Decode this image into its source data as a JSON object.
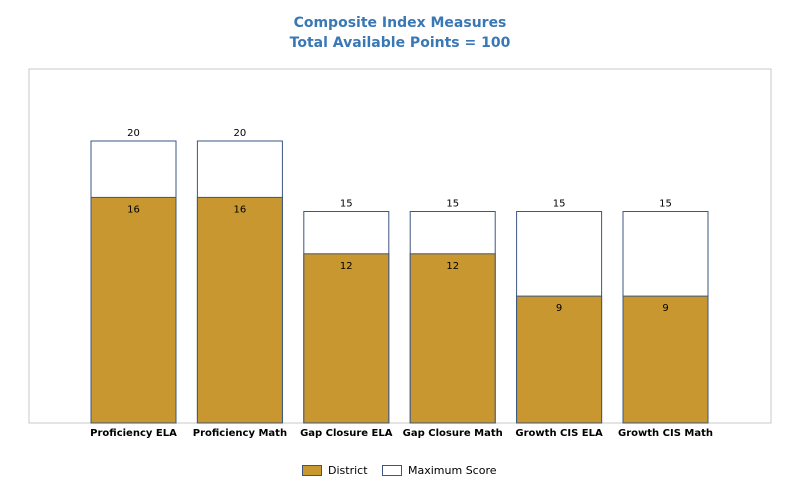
{
  "chart_data": {
    "type": "bar",
    "title": "Composite Index Measures",
    "subtitle": "Total Available Points = 100",
    "categories": [
      "Proficiency ELA",
      "Proficiency Math",
      "Gap Closure ELA",
      "Gap Closure Math",
      "Growth CIS ELA",
      "Growth CIS Math"
    ],
    "series": [
      {
        "name": "District",
        "values": [
          16,
          16,
          12,
          12,
          9,
          9
        ],
        "color": "#c8972f"
      },
      {
        "name": "Maximum Score",
        "values": [
          20,
          20,
          15,
          15,
          15,
          15
        ],
        "color": "#ffffff",
        "border": "#3b5680"
      }
    ],
    "ylim": [
      0,
      26.5
    ],
    "grid": false,
    "legend": "bottom-center"
  }
}
